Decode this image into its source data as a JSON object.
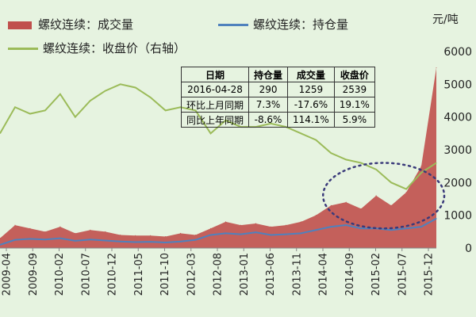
{
  "legend": {
    "volume": "螺纹连续：成交量",
    "open_interest": "螺纹连续：持仓量",
    "close": "螺纹连续：收盘价（右轴）"
  },
  "colors": {
    "background": "#e6f3e0",
    "volume": "#c0504d",
    "open_interest": "#4f81bd",
    "close": "#9bbb59",
    "ellipse": "#3a3a7a"
  },
  "table": {
    "headers": [
      "日期",
      "持仓量",
      "成交量",
      "收盘价"
    ],
    "rows": [
      [
        "2016-04-28",
        "290",
        "1259",
        "2539"
      ],
      [
        "环比上月同期",
        "7.3%",
        "-17.6%",
        "19.1%"
      ],
      [
        "同比上年同期",
        "-8.6%",
        "114.1%",
        "5.9%"
      ]
    ]
  },
  "chart_data": {
    "type": "area",
    "yunit": "元/吨",
    "ylim": [
      0,
      6000
    ],
    "yticks": [
      "0",
      "1000",
      "2000",
      "3000",
      "4000",
      "5000",
      "6000"
    ],
    "xticks": [
      "2009-04",
      "2009-09",
      "2010-02",
      "2010-07",
      "2010-12",
      "2011-05",
      "2011-10",
      "2012-03",
      "2012-08",
      "2013-01",
      "2013-06",
      "2013-11",
      "2014-04",
      "2014-09",
      "2015-02",
      "2015-07",
      "2015-12"
    ],
    "x": [
      "2009-04",
      "2009-07",
      "2009-10",
      "2010-01",
      "2010-04",
      "2010-07",
      "2010-10",
      "2011-01",
      "2011-04",
      "2011-07",
      "2011-10",
      "2012-01",
      "2012-04",
      "2012-07",
      "2012-10",
      "2013-01",
      "2013-04",
      "2013-07",
      "2013-10",
      "2014-01",
      "2014-04",
      "2014-07",
      "2014-10",
      "2015-01",
      "2015-04",
      "2015-07",
      "2015-10",
      "2016-01",
      "2016-03",
      "2016-04"
    ],
    "series": [
      {
        "name": "螺纹连续：收盘价（右轴）",
        "values": [
          3500,
          4300,
          4100,
          4200,
          4700,
          4000,
          4500,
          4800,
          5000,
          4900,
          4600,
          4200,
          4300,
          4200,
          3500,
          3900,
          3700,
          3700,
          3800,
          3700,
          3500,
          3300,
          2900,
          2700,
          2600,
          2400,
          2000,
          1800,
          2300,
          2600
        ]
      },
      {
        "name": "螺纹连续：成交量",
        "values": [
          300,
          700,
          600,
          500,
          650,
          450,
          550,
          500,
          400,
          380,
          380,
          350,
          450,
          400,
          600,
          800,
          700,
          750,
          650,
          700,
          800,
          1000,
          1300,
          1400,
          1200,
          1600,
          1300,
          1700,
          2500,
          5500
        ]
      },
      {
        "name": "螺纹连续：持仓量",
        "values": [
          100,
          250,
          280,
          260,
          300,
          220,
          260,
          230,
          200,
          180,
          190,
          170,
          200,
          250,
          400,
          450,
          420,
          480,
          400,
          420,
          450,
          550,
          650,
          700,
          600,
          600,
          550,
          600,
          650,
          900
        ]
      }
    ],
    "annotation": "dotted ellipse highlighting 2014-09 to 2016 volume surge",
    "grid": false,
    "legend_position": "top"
  }
}
